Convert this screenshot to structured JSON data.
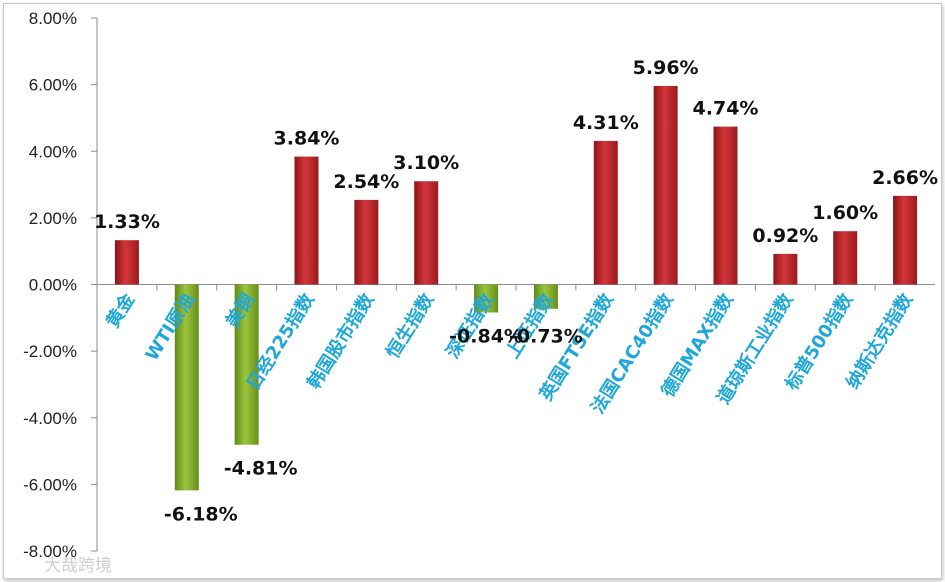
{
  "chart_data": {
    "type": "bar",
    "categories": [
      "黄金",
      "WTI原油",
      "美铜",
      "日经225指数",
      "韩国股市指数",
      "恒生指数",
      "深证指数",
      "上证指数",
      "英国FTSE指数",
      "法国CAC40指数",
      "德国MAX指数",
      "道琼斯工业指数",
      "标普500指数",
      "纳斯达克指数"
    ],
    "values": [
      1.33,
      -6.18,
      -4.81,
      3.84,
      2.54,
      3.1,
      -0.84,
      -0.73,
      4.31,
      5.96,
      4.74,
      0.92,
      1.6,
      2.66
    ],
    "value_labels": [
      "1.33%",
      "-6.18%",
      "-4.81%",
      "3.84%",
      "2.54%",
      "3.10%",
      "-0.84%",
      "-0.73%",
      "4.31%",
      "5.96%",
      "4.74%",
      "0.92%",
      "1.60%",
      "2.66%"
    ],
    "ylim": [
      -8,
      8
    ],
    "yticks": [
      "8.00%",
      "6.00%",
      "4.00%",
      "2.00%",
      "0.00%",
      "-2.00%",
      "-4.00%",
      "-6.00%",
      "-8.00%"
    ],
    "title": "",
    "xlabel": "",
    "ylabel": "",
    "grid": false,
    "legend": "none",
    "colors": {
      "positive": "#c0262c",
      "negative": "#8ab52a",
      "category_text": "#1fa7d8"
    }
  },
  "watermark": "大哉跨境"
}
